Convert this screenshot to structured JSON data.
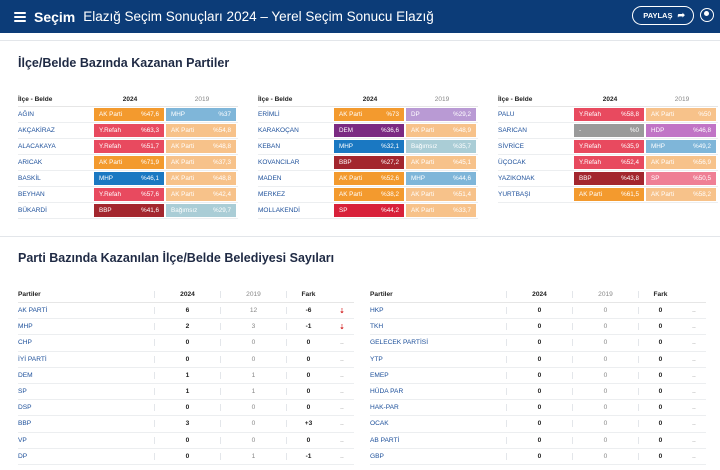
{
  "header": {
    "brand": "Seçim",
    "title": "Elazığ Seçim Sonuçları 2024 – Yerel Seçim Sonucu Elazığ",
    "share_label": "PAYLAŞ"
  },
  "section1": {
    "title": "İlçe/Belde Bazında Kazanan Partiler",
    "col_name": "İlçe - Belde",
    "col_2024": "2024",
    "col_2019": "2019",
    "tables": [
      [
        {
          "name": "AĞIN",
          "p24": "AK Parti",
          "v24": "%47,6",
          "c24": "#f39a2e",
          "p19": "MHP",
          "v19": "%37",
          "c19": "#7fb6d9"
        },
        {
          "name": "AKÇAKİRAZ",
          "p24": "Y.Refah",
          "v24": "%63,3",
          "c24": "#e84a5f",
          "p19": "AK Parti",
          "v19": "%54,8",
          "c19": "#f7c28a"
        },
        {
          "name": "ALACAKAYA",
          "p24": "Y.Refah",
          "v24": "%51,7",
          "c24": "#e84a5f",
          "p19": "AK Parti",
          "v19": "%48,8",
          "c19": "#f7c28a"
        },
        {
          "name": "ARICAK",
          "p24": "AK Parti",
          "v24": "%71,9",
          "c24": "#f39a2e",
          "p19": "AK Parti",
          "v19": "%37,3",
          "c19": "#f7c28a"
        },
        {
          "name": "BASKİL",
          "p24": "MHP",
          "v24": "%46,1",
          "c24": "#1a78c2",
          "p19": "AK Parti",
          "v19": "%48,8",
          "c19": "#f7c28a"
        },
        {
          "name": "BEYHAN",
          "p24": "Y.Refah",
          "v24": "%57,6",
          "c24": "#e84a5f",
          "p19": "AK Parti",
          "v19": "%42,4",
          "c19": "#f7c28a"
        },
        {
          "name": "BÜKARDİ",
          "p24": "BBP",
          "v24": "%41,6",
          "c24": "#a3262e",
          "p19": "Bağımsız",
          "v19": "%29,7",
          "c19": "#aacdd6"
        }
      ],
      [
        {
          "name": "ERİMLİ",
          "p24": "AK Parti",
          "v24": "%73",
          "c24": "#f39a2e",
          "p19": "DP",
          "v19": "%29,2",
          "c19": "#b99ad4"
        },
        {
          "name": "KARAKOÇAN",
          "p24": "DEM",
          "v24": "%36,6",
          "c24": "#7b2a82",
          "p19": "AK Parti",
          "v19": "%48,9",
          "c19": "#f7c28a"
        },
        {
          "name": "KEBAN",
          "p24": "MHP",
          "v24": "%32,1",
          "c24": "#1a78c2",
          "p19": "Bağımsız",
          "v19": "%35,7",
          "c19": "#aacdd6"
        },
        {
          "name": "KOVANCILAR",
          "p24": "BBP",
          "v24": "%27,2",
          "c24": "#a3262e",
          "p19": "AK Parti",
          "v19": "%45,1",
          "c19": "#f7c28a"
        },
        {
          "name": "MADEN",
          "p24": "AK Parti",
          "v24": "%52,6",
          "c24": "#f39a2e",
          "p19": "MHP",
          "v19": "%44,6",
          "c19": "#7fb6d9"
        },
        {
          "name": "MERKEZ",
          "p24": "AK Parti",
          "v24": "%38,2",
          "c24": "#f39a2e",
          "p19": "AK Parti",
          "v19": "%51,4",
          "c19": "#f7c28a"
        },
        {
          "name": "MOLLAKENDİ",
          "p24": "SP",
          "v24": "%44,2",
          "c24": "#d8213a",
          "p19": "AK Parti",
          "v19": "%33,7",
          "c19": "#f7c28a"
        }
      ],
      [
        {
          "name": "PALU",
          "p24": "Y.Refah",
          "v24": "%58,8",
          "c24": "#e84a5f",
          "p19": "AK Parti",
          "v19": "%50",
          "c19": "#f7c28a"
        },
        {
          "name": "SARICAN",
          "p24": "-",
          "v24": "%0",
          "c24": "#9a9a9a",
          "p19": "HDP",
          "v19": "%46,8",
          "c19": "#c174c6"
        },
        {
          "name": "SİVRİCE",
          "p24": "Y.Refah",
          "v24": "%35,9",
          "c24": "#e84a5f",
          "p19": "MHP",
          "v19": "%49,2",
          "c19": "#7fb6d9"
        },
        {
          "name": "ÜÇOCAK",
          "p24": "Y.Refah",
          "v24": "%52,4",
          "c24": "#e84a5f",
          "p19": "AK Parti",
          "v19": "%56,9",
          "c19": "#f7c28a"
        },
        {
          "name": "YAZIKONAK",
          "p24": "BBP",
          "v24": "%43,8",
          "c24": "#a3262e",
          "p19": "SP",
          "v19": "%50,5",
          "c19": "#ef7f95"
        },
        {
          "name": "YURTBAŞI",
          "p24": "AK Parti",
          "v24": "%61,5",
          "c24": "#f39a2e",
          "p19": "AK Parti",
          "v19": "%58,2",
          "c19": "#f7c28a"
        }
      ]
    ]
  },
  "section2": {
    "title": "Parti Bazında Kazanılan İlçe/Belde Belediyesi Sayıları",
    "col_party": "Partiler",
    "col_2024": "2024",
    "col_2019": "2019",
    "col_diff": "Fark",
    "tables": [
      [
        {
          "party": "AK PARTİ",
          "v24": "6",
          "v19": "12",
          "diff": "-6",
          "ind": "⇣",
          "down": true
        },
        {
          "party": "MHP",
          "v24": "2",
          "v19": "3",
          "diff": "-1",
          "ind": "⇣",
          "down": true
        },
        {
          "party": "CHP",
          "v24": "0",
          "v19": "0",
          "diff": "0",
          "ind": "..",
          "down": false
        },
        {
          "party": "İYİ PARTİ",
          "v24": "0",
          "v19": "0",
          "diff": "0",
          "ind": "..",
          "down": false
        },
        {
          "party": "DEM",
          "v24": "1",
          "v19": "1",
          "diff": "0",
          "ind": "..",
          "down": false
        },
        {
          "party": "SP",
          "v24": "1",
          "v19": "1",
          "diff": "0",
          "ind": "..",
          "down": false
        },
        {
          "party": "DSP",
          "v24": "0",
          "v19": "0",
          "diff": "0",
          "ind": "..",
          "down": false
        },
        {
          "party": "BBP",
          "v24": "3",
          "v19": "0",
          "diff": "+3",
          "ind": "..",
          "down": false
        },
        {
          "party": "VP",
          "v24": "0",
          "v19": "0",
          "diff": "0",
          "ind": "..",
          "down": false
        },
        {
          "party": "DP",
          "v24": "0",
          "v19": "1",
          "diff": "-1",
          "ind": "..",
          "down": false
        }
      ],
      [
        {
          "party": "HKP",
          "v24": "0",
          "v19": "0",
          "diff": "0",
          "ind": "..",
          "down": false
        },
        {
          "party": "TKH",
          "v24": "0",
          "v19": "0",
          "diff": "0",
          "ind": "..",
          "down": false
        },
        {
          "party": "GELECEK PARTİSİ",
          "v24": "0",
          "v19": "0",
          "diff": "0",
          "ind": "..",
          "down": false
        },
        {
          "party": "YTP",
          "v24": "0",
          "v19": "0",
          "diff": "0",
          "ind": "..",
          "down": false
        },
        {
          "party": "EMEP",
          "v24": "0",
          "v19": "0",
          "diff": "0",
          "ind": "..",
          "down": false
        },
        {
          "party": "HÜDA PAR",
          "v24": "0",
          "v19": "0",
          "diff": "0",
          "ind": "..",
          "down": false
        },
        {
          "party": "HAK-PAR",
          "v24": "0",
          "v19": "0",
          "diff": "0",
          "ind": "..",
          "down": false
        },
        {
          "party": "OCAK",
          "v24": "0",
          "v19": "0",
          "diff": "0",
          "ind": "..",
          "down": false
        },
        {
          "party": "AB PARTİ",
          "v24": "0",
          "v19": "0",
          "diff": "0",
          "ind": "..",
          "down": false
        },
        {
          "party": "GBP",
          "v24": "0",
          "v19": "0",
          "diff": "0",
          "ind": "..",
          "down": false
        }
      ]
    ]
  }
}
